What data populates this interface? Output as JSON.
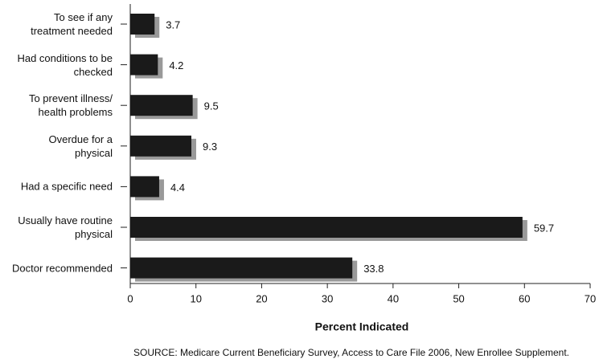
{
  "chart_data": {
    "type": "bar",
    "orientation": "horizontal",
    "categories": [
      "To see if any\ntreatment needed",
      "Had conditions to be\nchecked",
      "To prevent illness/\nhealth problems",
      "Overdue for a\nphysical",
      "Had a specific need",
      "Usually have routine\nphysical",
      "Doctor recommended"
    ],
    "values": [
      3.7,
      4.2,
      9.5,
      9.3,
      4.4,
      59.7,
      33.8
    ],
    "color": "#1a1a1a",
    "shadow_color": "#999999",
    "xlim": [
      0,
      70
    ],
    "xticks": [
      0,
      10,
      20,
      30,
      40,
      50,
      60,
      70
    ],
    "xlabel": "Percent Indicated",
    "source": "SOURCE: Medicare Current Beneficiary Survey, Access to Care File 2006, New Enrollee Supplement."
  }
}
